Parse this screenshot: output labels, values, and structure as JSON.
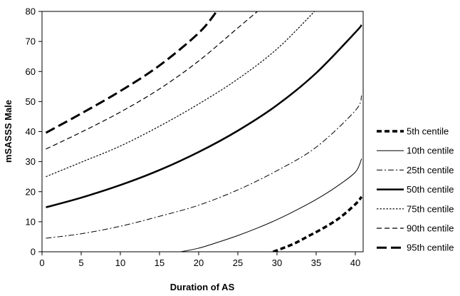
{
  "chart_data": {
    "type": "line",
    "title": "",
    "xlabel": "Duration of AS",
    "ylabel": "mSASSS Male",
    "xlim": [
      0,
      41
    ],
    "ylim": [
      0,
      80
    ],
    "xticks": [
      0,
      5,
      10,
      15,
      20,
      25,
      30,
      35,
      40
    ],
    "yticks": [
      0,
      10,
      20,
      30,
      40,
      50,
      60,
      70,
      80
    ],
    "grid": false,
    "legend_position": "right",
    "series": [
      {
        "name": "5th centile",
        "style": "heavy-dash",
        "x": [
          29.5,
          32,
          34,
          36,
          38,
          40,
          40.8
        ],
        "y": [
          0,
          2.5,
          5.2,
          8,
          11.3,
          15.8,
          18.3
        ]
      },
      {
        "name": "10th centile",
        "style": "thin-solid",
        "x": [
          17.7,
          20,
          22.5,
          25,
          27.5,
          30,
          32.5,
          35,
          37.5,
          40,
          40.8
        ],
        "y": [
          0,
          1.2,
          3.2,
          5.4,
          7.9,
          10.7,
          13.9,
          17.4,
          21.5,
          26.5,
          31
        ]
      },
      {
        "name": "25th centile",
        "style": "dash-dot",
        "x": [
          0.5,
          5,
          10,
          15,
          20,
          25,
          30,
          35,
          40,
          40.8
        ],
        "y": [
          4.5,
          6,
          8.5,
          11.8,
          15.5,
          20.6,
          27,
          34.8,
          47,
          52
        ]
      },
      {
        "name": "50th centile",
        "style": "thick-solid",
        "x": [
          0.5,
          5,
          10,
          15,
          20,
          25,
          30,
          35,
          40,
          40.8
        ],
        "y": [
          14.8,
          18,
          22.2,
          27.2,
          33.2,
          40.3,
          48.8,
          59.5,
          73,
          75.5
        ]
      },
      {
        "name": "75th centile",
        "style": "dotted",
        "x": [
          0.5,
          5,
          10,
          15,
          20,
          25,
          30,
          34.8
        ],
        "y": [
          25,
          29.8,
          35.2,
          41.8,
          49.2,
          57.5,
          67.5,
          80
        ]
      },
      {
        "name": "90th centile",
        "style": "dashed",
        "x": [
          0.5,
          5,
          10,
          15,
          20,
          25,
          27.5
        ],
        "y": [
          34.2,
          39.8,
          46.5,
          54.2,
          63.5,
          74.5,
          80
        ]
      },
      {
        "name": "95th centile",
        "style": "heavy-long-dash",
        "x": [
          0.5,
          5,
          10,
          15,
          20,
          22.3
        ],
        "y": [
          39.6,
          46,
          53.5,
          62,
          72.8,
          80
        ]
      }
    ]
  }
}
